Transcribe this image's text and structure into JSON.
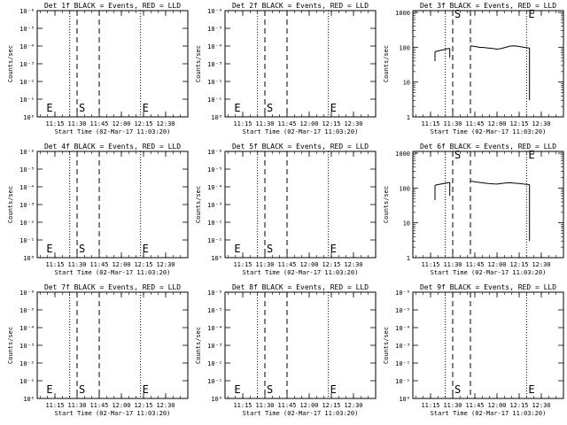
{
  "chart_data": [
    {
      "type": "line",
      "title": "Det 1f BLACK = Events, RED = LLD",
      "xlabel": "Start Time (02-Mar-17 11:03:20)",
      "ylabel": "Counts/sec",
      "x_tick_labels": [
        "11:15",
        "11:30",
        "11:45",
        "12:00",
        "12:15",
        "12:30"
      ],
      "y_tick_labels": [
        "10⁰",
        "10⁻¹",
        "10⁻²",
        "10⁻³",
        "10⁻⁴",
        "10⁻⁵",
        "10⁻⁶"
      ],
      "y_scale": "log",
      "markers": [
        {
          "label": "E",
          "time": "11:08"
        },
        {
          "label": "S",
          "time": "11:30"
        },
        {
          "label": "E",
          "time": "12:13"
        }
      ],
      "dotted_lines": [
        "11:25",
        "12:13"
      ],
      "dashed_lines": [
        "11:30",
        "11:45"
      ],
      "series": []
    },
    {
      "type": "line",
      "title": "Det 2f BLACK = Events, RED = LLD",
      "xlabel": "Start Time (02-Mar-17 11:03:20)",
      "ylabel": "Counts/sec",
      "x_tick_labels": [
        "11:15",
        "11:30",
        "11:45",
        "12:00",
        "12:15",
        "12:30"
      ],
      "y_tick_labels": [
        "10⁰",
        "10⁻¹",
        "10⁻²",
        "10⁻³",
        "10⁻⁴",
        "10⁻⁵",
        "10⁻⁶"
      ],
      "y_scale": "log",
      "markers": [
        {
          "label": "E",
          "time": "11:08"
        },
        {
          "label": "S",
          "time": "11:30"
        },
        {
          "label": "E",
          "time": "12:13"
        }
      ],
      "dotted_lines": [
        "11:25",
        "12:13"
      ],
      "dashed_lines": [
        "11:30",
        "11:45"
      ],
      "series": []
    },
    {
      "type": "line",
      "title": "Det 3f BLACK = Events, RED = LLD",
      "xlabel": "Start Time (02-Mar-17 11:03:20)",
      "ylabel": "Counts/sec",
      "x_tick_labels": [
        "11:15",
        "11:30",
        "11:45",
        "12:00",
        "12:15",
        "12:30"
      ],
      "y_tick_labels": [
        "1",
        "10",
        "100",
        "1000"
      ],
      "y_scale": "log",
      "markers": [
        {
          "label": "S",
          "time": "11:30"
        },
        {
          "label": "E",
          "time": "12:20"
        }
      ],
      "dotted_lines": [
        "11:25",
        "12:20"
      ],
      "dashed_lines": [
        "11:30",
        "11:42"
      ],
      "series": [
        {
          "color": "#000000",
          "segments": [
            {
              "drops": [
                {
                  "time": "11:18",
                  "to": 40
                },
                {
                  "time": "11:28",
                  "to": 50
                }
              ],
              "points": [
                [
                  11.3,
                  75
                ],
                [
                  11.333,
                  78
                ],
                [
                  11.367,
                  82
                ],
                [
                  11.4,
                  85
                ],
                [
                  11.433,
                  90
                ],
                [
                  11.467,
                  92
                ]
              ]
            },
            {
              "drops": [
                {
                  "time": "12:22",
                  "to": 3
                }
              ],
              "points": [
                [
                  11.7,
                  110
                ],
                [
                  11.75,
                  105
                ],
                [
                  11.8,
                  100
                ],
                [
                  11.85,
                  98
                ],
                [
                  11.9,
                  95
                ],
                [
                  11.95,
                  92
                ],
                [
                  12.0,
                  88
                ],
                [
                  12.05,
                  92
                ],
                [
                  12.1,
                  100
                ],
                [
                  12.15,
                  108
                ],
                [
                  12.2,
                  110
                ],
                [
                  12.25,
                  105
                ],
                [
                  12.3,
                  100
                ],
                [
                  12.367,
                  95
                ]
              ]
            }
          ]
        }
      ]
    },
    {
      "type": "line",
      "title": "Det 4f BLACK = Events, RED = LLD",
      "xlabel": "Start Time (02-Mar-17 11:03:20)",
      "ylabel": "Counts/sec",
      "x_tick_labels": [
        "11:15",
        "11:30",
        "11:45",
        "12:00",
        "12:15",
        "12:30"
      ],
      "y_tick_labels": [
        "10⁰",
        "10⁻¹",
        "10⁻²",
        "10⁻³",
        "10⁻⁴",
        "10⁻⁵",
        "10⁻⁶"
      ],
      "y_scale": "log",
      "markers": [
        {
          "label": "E",
          "time": "11:08"
        },
        {
          "label": "S",
          "time": "11:30"
        },
        {
          "label": "E",
          "time": "12:13"
        }
      ],
      "dotted_lines": [
        "11:25",
        "12:13"
      ],
      "dashed_lines": [
        "11:30",
        "11:45"
      ],
      "series": []
    },
    {
      "type": "line",
      "title": "Det 5f BLACK = Events, RED = LLD",
      "xlabel": "Start Time (02-Mar-17 11:03:20)",
      "ylabel": "Counts/sec",
      "x_tick_labels": [
        "11:15",
        "11:30",
        "11:45",
        "12:00",
        "12:15",
        "12:30"
      ],
      "y_tick_labels": [
        "10⁰",
        "10⁻¹",
        "10⁻²",
        "10⁻³",
        "10⁻⁴",
        "10⁻⁵",
        "10⁻⁶"
      ],
      "y_scale": "log",
      "markers": [
        {
          "label": "E",
          "time": "11:08"
        },
        {
          "label": "S",
          "time": "11:30"
        },
        {
          "label": "E",
          "time": "12:13"
        }
      ],
      "dotted_lines": [
        "11:25",
        "12:13"
      ],
      "dashed_lines": [
        "11:30",
        "11:45"
      ],
      "series": []
    },
    {
      "type": "line",
      "title": "Det 6f BLACK = Events, RED = LLD",
      "xlabel": "Start Time (02-Mar-17 11:03:20)",
      "ylabel": "Counts/sec",
      "x_tick_labels": [
        "11:15",
        "11:30",
        "11:45",
        "12:00",
        "12:15",
        "12:30"
      ],
      "y_tick_labels": [
        "1",
        "10",
        "100",
        "1000"
      ],
      "y_scale": "log",
      "markers": [
        {
          "label": "S",
          "time": "11:30"
        },
        {
          "label": "E",
          "time": "12:20"
        }
      ],
      "dotted_lines": [
        "11:25",
        "12:20"
      ],
      "dashed_lines": [
        "11:30",
        "11:42"
      ],
      "series": [
        {
          "color": "#000000",
          "segments": [
            {
              "drops": [
                {
                  "time": "11:18",
                  "to": 45
                },
                {
                  "time": "11:28",
                  "to": 60
                }
              ],
              "points": [
                [
                  11.3,
                  120
                ],
                [
                  11.333,
                  125
                ],
                [
                  11.367,
                  130
                ],
                [
                  11.4,
                  135
                ],
                [
                  11.433,
                  140
                ],
                [
                  11.467,
                  145
                ]
              ]
            },
            {
              "drops": [
                {
                  "time": "12:22",
                  "to": 3
                }
              ],
              "points": [
                [
                  11.7,
                  160
                ],
                [
                  11.75,
                  150
                ],
                [
                  11.8,
                  145
                ],
                [
                  11.85,
                  140
                ],
                [
                  11.9,
                  135
                ],
                [
                  11.95,
                  132
                ],
                [
                  12.0,
                  130
                ],
                [
                  12.05,
                  135
                ],
                [
                  12.1,
                  140
                ],
                [
                  12.15,
                  142
                ],
                [
                  12.2,
                  138
                ],
                [
                  12.25,
                  135
                ],
                [
                  12.3,
                  130
                ],
                [
                  12.367,
                  125
                ]
              ]
            }
          ]
        }
      ]
    },
    {
      "type": "line",
      "title": "Det 7f BLACK = Events, RED = LLD",
      "xlabel": "Start Time (02-Mar-17 11:03:20)",
      "ylabel": "Counts/sec",
      "x_tick_labels": [
        "11:15",
        "11:30",
        "11:45",
        "12:00",
        "12:15",
        "12:30"
      ],
      "y_tick_labels": [
        "10⁰",
        "10⁻¹",
        "10⁻²",
        "10⁻³",
        "10⁻⁴",
        "10⁻⁵",
        "10⁻⁶"
      ],
      "y_scale": "log",
      "markers": [
        {
          "label": "E",
          "time": "11:08"
        },
        {
          "label": "S",
          "time": "11:30"
        },
        {
          "label": "E",
          "time": "12:13"
        }
      ],
      "dotted_lines": [
        "11:25",
        "12:13"
      ],
      "dashed_lines": [
        "11:30",
        "11:45"
      ],
      "series": []
    },
    {
      "type": "line",
      "title": "Det 8f BLACK = Events, RED = LLD",
      "xlabel": "Start Time (02-Mar-17 11:03:20)",
      "ylabel": "Counts/sec",
      "x_tick_labels": [
        "11:15",
        "11:30",
        "11:45",
        "12:00",
        "12:15",
        "12:30"
      ],
      "y_tick_labels": [
        "10⁰",
        "10⁻¹",
        "10⁻²",
        "10⁻³",
        "10⁻⁴",
        "10⁻⁵",
        "10⁻⁶"
      ],
      "y_scale": "log",
      "markers": [
        {
          "label": "E",
          "time": "11:08"
        },
        {
          "label": "S",
          "time": "11:30"
        },
        {
          "label": "E",
          "time": "12:13"
        }
      ],
      "dotted_lines": [
        "11:25",
        "12:13"
      ],
      "dashed_lines": [
        "11:30",
        "11:45"
      ],
      "series": []
    },
    {
      "type": "line",
      "title": "Det 9f BLACK = Events, RED = LLD",
      "xlabel": "Start Time (02-Mar-17 11:03:20)",
      "ylabel": "Counts/sec",
      "x_tick_labels": [
        "11:15",
        "11:30",
        "11:45",
        "12:00",
        "12:15",
        "12:30"
      ],
      "y_tick_labels": [
        "10⁰",
        "10⁻¹",
        "10⁻²",
        "10⁻³",
        "10⁻⁴",
        "10⁻⁵",
        "10⁻⁶"
      ],
      "y_scale": "log",
      "markers": [
        {
          "label": "S",
          "time": "11:30"
        },
        {
          "label": "E",
          "time": "12:20"
        }
      ],
      "dotted_lines": [
        "11:25",
        "12:20"
      ],
      "dashed_lines": [
        "11:30",
        "11:42"
      ],
      "series": []
    }
  ]
}
